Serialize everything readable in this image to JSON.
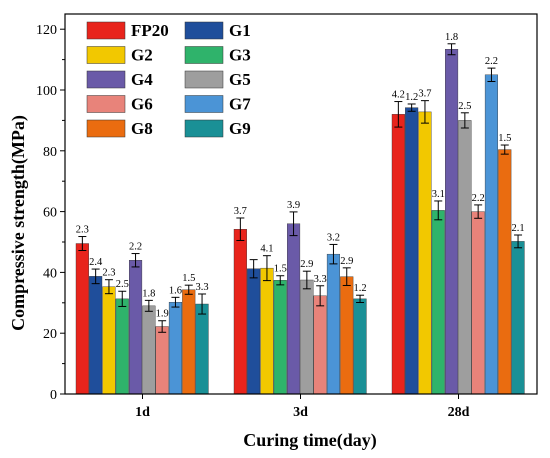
{
  "chart_data": {
    "type": "bar",
    "xlabel": "Curing time(day)",
    "ylabel": "Compressive strength(MPa)",
    "ylim": [
      0,
      125
    ],
    "yticks": [
      0,
      20,
      40,
      60,
      80,
      100,
      120
    ],
    "categories": [
      "1d",
      "3d",
      "28d"
    ],
    "legend_position": "top-left",
    "series": [
      {
        "name": "FP20",
        "color": "#e8241c",
        "values": [
          49.5,
          54.2,
          92.0
        ],
        "errors": [
          2.3,
          3.7,
          4.2
        ],
        "labels": [
          "2.3",
          "3.7",
          "4.2"
        ]
      },
      {
        "name": "G1",
        "color": "#1f4e9b",
        "values": [
          38.7,
          41.2,
          94.2
        ],
        "errors": [
          2.4,
          3.0,
          1.2
        ],
        "labels": [
          "2.4",
          "",
          "1.2"
        ]
      },
      {
        "name": "G2",
        "color": "#f2c800",
        "values": [
          35.3,
          41.4,
          92.8
        ],
        "errors": [
          2.3,
          4.1,
          3.7
        ],
        "labels": [
          "2.3",
          "4.1",
          "3.7"
        ]
      },
      {
        "name": "G3",
        "color": "#2fb36b",
        "values": [
          31.3,
          37.4,
          60.4
        ],
        "errors": [
          2.5,
          1.5,
          3.1
        ],
        "labels": [
          "2.5",
          "1.5",
          "3.1"
        ]
      },
      {
        "name": "G4",
        "color": "#6a5aa8",
        "values": [
          44.0,
          56.0,
          113.4
        ],
        "errors": [
          2.2,
          3.9,
          1.8
        ],
        "labels": [
          "2.2",
          "3.9",
          "1.8"
        ]
      },
      {
        "name": "G5",
        "color": "#9e9e9e",
        "values": [
          29.0,
          37.5,
          90.0
        ],
        "errors": [
          1.8,
          2.9,
          2.5
        ],
        "labels": [
          "1.8",
          "2.9",
          "2.5"
        ]
      },
      {
        "name": "G6",
        "color": "#e8837a",
        "values": [
          22.2,
          32.3,
          60.0
        ],
        "errors": [
          1.9,
          3.3,
          2.2
        ],
        "labels": [
          "1.9",
          "3.3",
          "2.2"
        ]
      },
      {
        "name": "G7",
        "color": "#4b94d6",
        "values": [
          30.2,
          46.0,
          105.0
        ],
        "errors": [
          1.6,
          3.2,
          2.2
        ],
        "labels": [
          "1.6",
          "3.2",
          "2.2"
        ]
      },
      {
        "name": "G8",
        "color": "#ea6c10",
        "values": [
          34.3,
          38.6,
          80.4
        ],
        "errors": [
          1.5,
          2.9,
          1.5
        ],
        "labels": [
          "1.5",
          "2.9",
          "1.5"
        ]
      },
      {
        "name": "G9",
        "color": "#1a9096",
        "values": [
          29.6,
          31.3,
          50.2
        ],
        "errors": [
          3.3,
          1.2,
          2.1
        ],
        "labels": [
          "3.3",
          "1.2",
          "2.1"
        ]
      }
    ]
  }
}
